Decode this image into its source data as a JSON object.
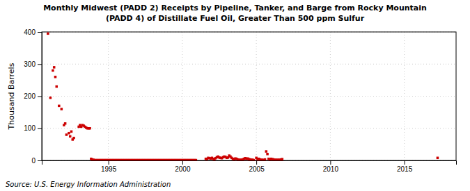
{
  "chart_data": {
    "type": "scatter",
    "title": "Monthly Midwest (PADD 2) Receipts by Pipeline, Tanker, and Barge from Rocky Mountain",
    "subtitle": "(PADD 4) of Distillate Fuel Oil, Greater Than 500 ppm Sulfur",
    "ylabel": "Thousand Barrels",
    "source": "Source: U.S. Energy Information Administration",
    "color": "#cc0000",
    "marker": "square",
    "grid": true,
    "xlim": [
      1990.5,
      2018.5
    ],
    "xticks": [
      1995,
      2000,
      2005,
      2010,
      2015
    ],
    "ylim": [
      0,
      400
    ],
    "yticks": [
      0,
      100,
      200,
      300,
      400
    ],
    "x": [
      1990.917,
      1991.083,
      1991.25,
      1991.333,
      1991.417,
      1991.5,
      1991.667,
      1991.833,
      1992.0,
      1992.083,
      1992.167,
      1992.333,
      1992.417,
      1992.5,
      1992.583,
      1992.667,
      1993.0,
      1993.083,
      1993.167,
      1993.25,
      1993.333,
      1993.417,
      1993.5,
      1993.583,
      1993.667,
      1993.75,
      1993.833,
      1993.917,
      1994.0,
      1994.083,
      1994.167,
      1994.25,
      1994.333,
      1994.417,
      1994.5,
      1994.583,
      1994.667,
      1994.75,
      1994.833,
      1994.917,
      1995.0,
      1995.083,
      1995.167,
      1995.25,
      1995.333,
      1995.417,
      1995.5,
      1995.583,
      1995.667,
      1995.75,
      1995.833,
      1995.917,
      1996.0,
      1996.083,
      1996.167,
      1996.25,
      1996.333,
      1996.417,
      1996.5,
      1996.583,
      1996.667,
      1996.75,
      1996.833,
      1996.917,
      1997.0,
      1997.083,
      1997.167,
      1997.25,
      1997.333,
      1997.417,
      1997.5,
      1997.583,
      1997.667,
      1997.75,
      1997.833,
      1997.917,
      1998.0,
      1998.083,
      1998.167,
      1998.25,
      1998.333,
      1998.417,
      1998.5,
      1998.583,
      1998.667,
      1998.75,
      1998.833,
      1998.917,
      1999.0,
      1999.083,
      1999.167,
      1999.25,
      1999.333,
      1999.417,
      1999.5,
      1999.583,
      1999.667,
      1999.75,
      1999.833,
      1999.917,
      2000.0,
      2000.083,
      2000.167,
      2000.25,
      2000.333,
      2000.417,
      2000.5,
      2000.583,
      2000.667,
      2000.75,
      2000.833,
      2000.917,
      2001.583,
      2001.667,
      2001.75,
      2001.833,
      2001.917,
      2002.0,
      2002.083,
      2002.167,
      2002.25,
      2002.333,
      2002.417,
      2002.5,
      2002.583,
      2002.667,
      2002.75,
      2002.833,
      2002.917,
      2003.0,
      2003.083,
      2003.167,
      2003.25,
      2003.333,
      2003.417,
      2003.5,
      2003.583,
      2003.667,
      2003.75,
      2003.833,
      2003.917,
      2004.0,
      2004.083,
      2004.167,
      2004.25,
      2004.333,
      2004.417,
      2004.5,
      2004.583,
      2004.667,
      2004.75,
      2004.833,
      2005.0,
      2005.083,
      2005.167,
      2005.25,
      2005.333,
      2005.417,
      2005.5,
      2005.583,
      2005.667,
      2005.75,
      2005.833,
      2005.917,
      2006.0,
      2006.083,
      2006.167,
      2006.25,
      2006.333,
      2006.417,
      2006.5,
      2006.583,
      2006.667,
      2006.75,
      2017.25
    ],
    "values": [
      395,
      195,
      280,
      290,
      260,
      230,
      170,
      160,
      110,
      115,
      80,
      85,
      75,
      90,
      65,
      70,
      105,
      110,
      105,
      110,
      108,
      105,
      102,
      100,
      100,
      100,
      5,
      3,
      2,
      1,
      1,
      1,
      1,
      1,
      1,
      1,
      1,
      1,
      1,
      1,
      1,
      1,
      1,
      1,
      1,
      1,
      1,
      1,
      1,
      1,
      1,
      1,
      1,
      1,
      1,
      1,
      1,
      1,
      1,
      1,
      1,
      1,
      1,
      1,
      1,
      1,
      1,
      1,
      1,
      1,
      1,
      1,
      1,
      1,
      1,
      1,
      1,
      1,
      1,
      1,
      1,
      1,
      1,
      1,
      1,
      1,
      1,
      1,
      1,
      1,
      1,
      1,
      1,
      1,
      1,
      1,
      1,
      1,
      1,
      1,
      1,
      1,
      1,
      1,
      1,
      1,
      1,
      1,
      1,
      1,
      1,
      1,
      5,
      5,
      8,
      7,
      6,
      8,
      5,
      4,
      7,
      10,
      12,
      9,
      8,
      7,
      10,
      12,
      11,
      8,
      9,
      15,
      12,
      8,
      5,
      4,
      6,
      5,
      3,
      2,
      2,
      2,
      3,
      5,
      7,
      5,
      6,
      4,
      3,
      2,
      2,
      1,
      8,
      4,
      5,
      3,
      2,
      2,
      1,
      3,
      28,
      20,
      5,
      3,
      5,
      4,
      3,
      2,
      2,
      2,
      2,
      2,
      3,
      4,
      8
    ]
  }
}
